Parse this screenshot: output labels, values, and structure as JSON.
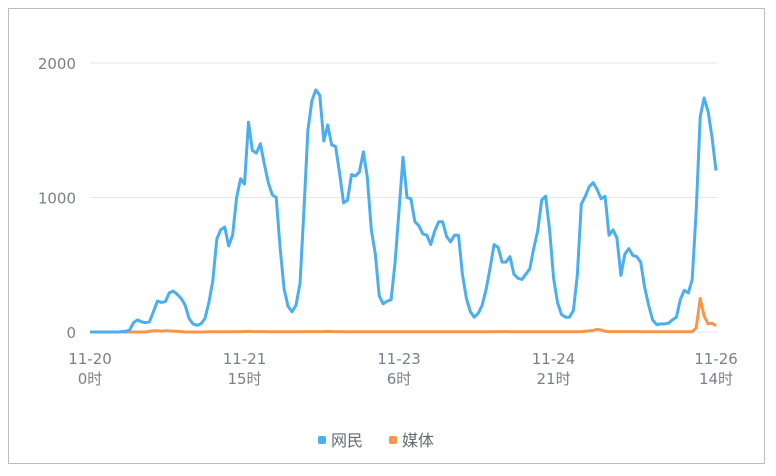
{
  "chart_data": {
    "type": "line",
    "title": "",
    "xlabel": "",
    "ylabel": "",
    "ylim": [
      0,
      2000
    ],
    "yticks": [
      "0",
      "1000",
      "2000"
    ],
    "grid": true,
    "legend_position": "bottom",
    "x_start": "11-20 0时",
    "x_step": "1 hour",
    "xtick_labels": [
      {
        "index": 0,
        "date": "11-20",
        "hour": "0时"
      },
      {
        "index": 39,
        "date": "11-21",
        "hour": "15时"
      },
      {
        "index": 78,
        "date": "11-23",
        "hour": "6时"
      },
      {
        "index": 117,
        "date": "11-24",
        "hour": "21时"
      },
      {
        "index": 158,
        "date": "11-26",
        "hour": "14时"
      }
    ],
    "series": [
      {
        "name": "网民",
        "color": "#4aaeef",
        "values": [
          0,
          0,
          0,
          0,
          0,
          0,
          0,
          0,
          3,
          5,
          15,
          70,
          90,
          75,
          70,
          75,
          150,
          230,
          220,
          225,
          290,
          305,
          280,
          250,
          200,
          100,
          60,
          50,
          60,
          100,
          220,
          380,
          690,
          760,
          780,
          640,
          720,
          1000,
          1140,
          1100,
          1560,
          1350,
          1330,
          1400,
          1250,
          1110,
          1020,
          1000,
          620,
          320,
          190,
          150,
          200,
          360,
          900,
          1500,
          1720,
          1800,
          1760,
          1420,
          1540,
          1390,
          1380,
          1180,
          960,
          980,
          1170,
          1160,
          1190,
          1340,
          1150,
          760,
          580,
          270,
          210,
          230,
          240,
          520,
          900,
          1300,
          1000,
          990,
          820,
          790,
          730,
          720,
          650,
          750,
          820,
          820,
          710,
          670,
          720,
          720,
          430,
          250,
          150,
          110,
          140,
          200,
          320,
          480,
          650,
          630,
          520,
          520,
          560,
          430,
          400,
          390,
          430,
          470,
          620,
          750,
          980,
          1010,
          760,
          400,
          220,
          130,
          110,
          110,
          160,
          420,
          950,
          1010,
          1080,
          1110,
          1060,
          990,
          1010,
          720,
          760,
          700,
          420,
          580,
          620,
          570,
          560,
          520,
          330,
          200,
          90,
          55,
          60,
          60,
          65,
          90,
          110,
          240,
          310,
          290,
          390,
          900,
          1600,
          1740,
          1640,
          1450,
          1200
        ]
      },
      {
        "name": "媒体",
        "color": "#f7964a",
        "values": [
          0,
          0,
          0,
          0,
          0,
          0,
          0,
          0,
          0,
          0,
          0,
          0,
          0,
          0,
          0,
          5,
          8,
          10,
          6,
          10,
          8,
          5,
          5,
          3,
          0,
          0,
          0,
          0,
          0,
          0,
          2,
          2,
          2,
          2,
          2,
          2,
          2,
          2,
          3,
          3,
          5,
          3,
          3,
          3,
          3,
          2,
          2,
          2,
          2,
          2,
          2,
          2,
          2,
          2,
          3,
          3,
          3,
          3,
          3,
          3,
          5,
          3,
          3,
          3,
          2,
          2,
          2,
          2,
          2,
          2,
          2,
          2,
          2,
          2,
          2,
          2,
          2,
          2,
          2,
          2,
          2,
          2,
          2,
          2,
          2,
          2,
          2,
          2,
          2,
          2,
          2,
          2,
          2,
          2,
          2,
          2,
          2,
          2,
          2,
          2,
          2,
          2,
          2,
          3,
          3,
          3,
          2,
          2,
          2,
          2,
          2,
          2,
          2,
          2,
          2,
          2,
          2,
          2,
          2,
          2,
          2,
          2,
          2,
          2,
          3,
          5,
          8,
          12,
          20,
          15,
          5,
          3,
          3,
          3,
          3,
          3,
          3,
          3,
          3,
          2,
          2,
          2,
          2,
          2,
          2,
          2,
          2,
          2,
          2,
          2,
          2,
          2,
          2,
          30,
          250,
          120,
          60,
          65,
          45
        ]
      }
    ]
  }
}
